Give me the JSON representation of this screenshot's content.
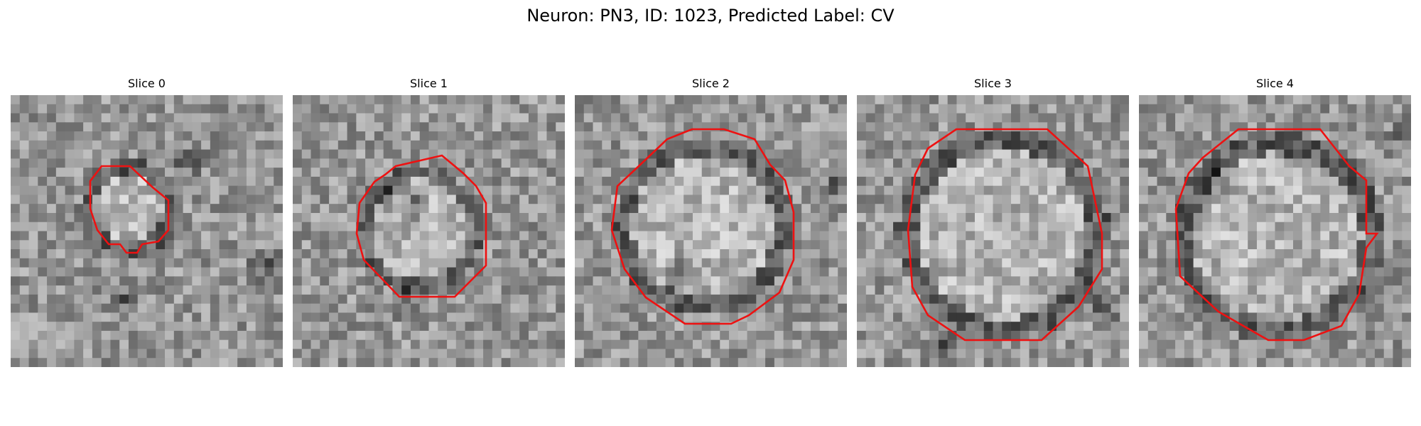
{
  "figure": {
    "title": "Neuron: PN3, ID: 1023, Predicted Label: CV"
  },
  "panels": [
    {
      "title": "Slice 0"
    },
    {
      "title": "Slice 1"
    },
    {
      "title": "Slice 2"
    },
    {
      "title": "Slice 3"
    },
    {
      "title": "Slice 4"
    }
  ],
  "colors": {
    "contour": "#ee1111",
    "colormap": "grayscale"
  }
}
